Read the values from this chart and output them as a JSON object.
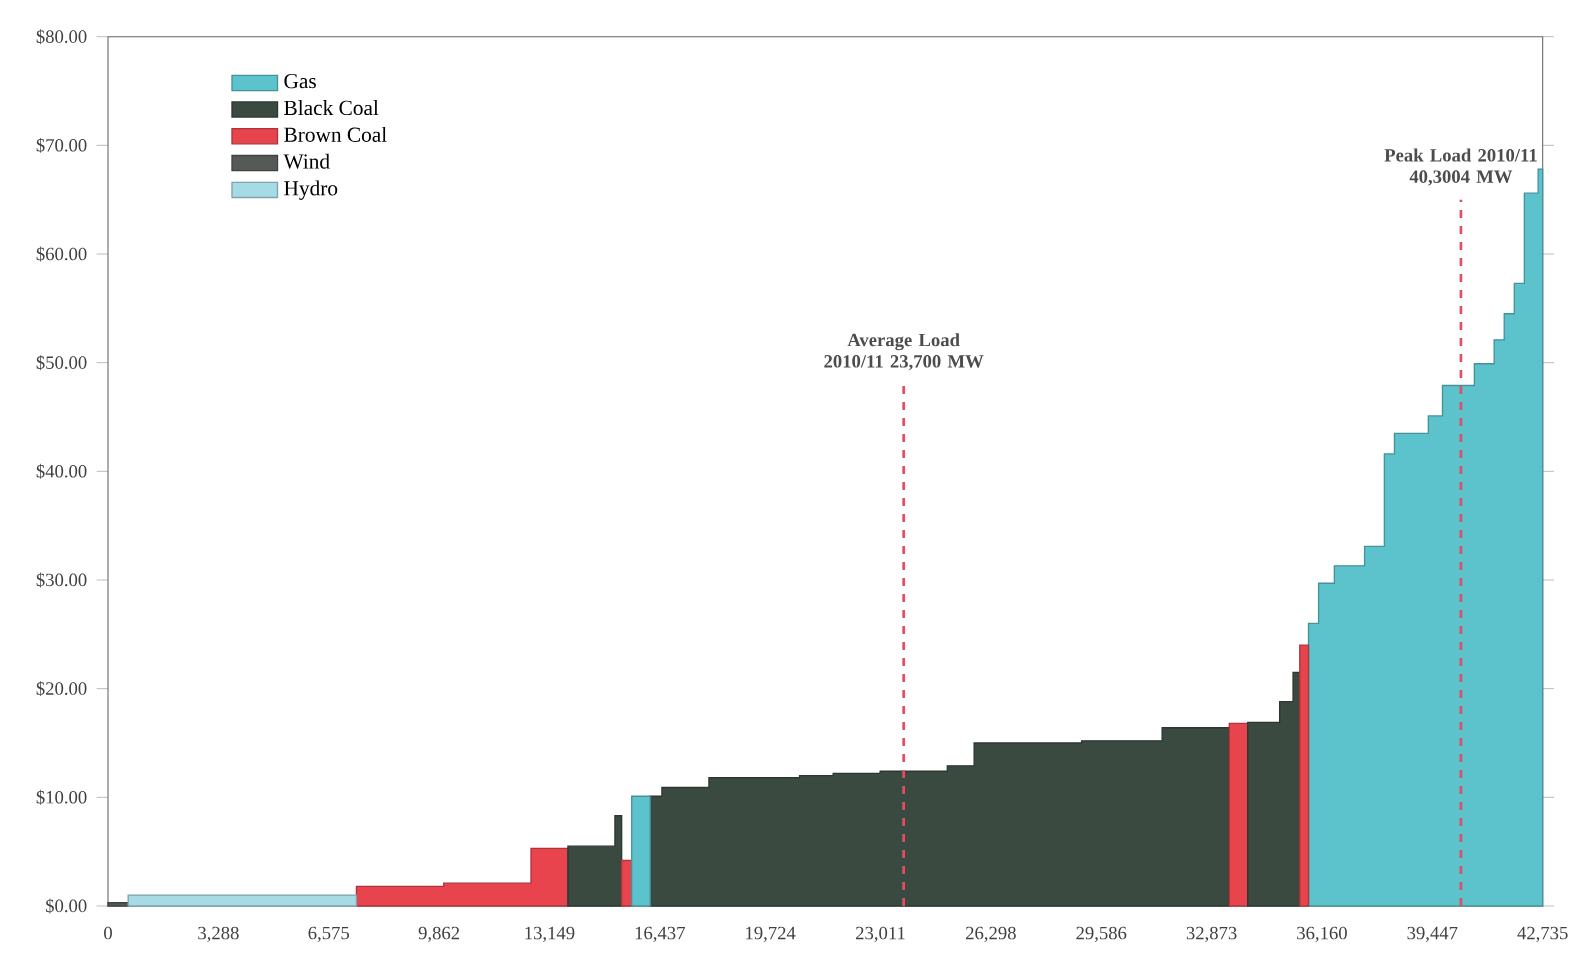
{
  "chart_data": {
    "type": "area",
    "xlim": [
      0,
      42735
    ],
    "ylim": [
      0,
      80
    ],
    "xticks": [
      0,
      {
        "value": 3288,
        "label": "3,288"
      },
      {
        "value": 6575,
        "label": "6,575"
      },
      {
        "value": 9862,
        "label": "9,862"
      },
      {
        "value": 13149,
        "label": "13,149"
      },
      {
        "value": 16437,
        "label": "16,437"
      },
      {
        "value": 19724,
        "label": "19,724"
      },
      {
        "value": 23011,
        "label": "23,011"
      },
      {
        "value": 26298,
        "label": "26,298"
      },
      {
        "value": 29586,
        "label": "29,586"
      },
      {
        "value": 32873,
        "label": "32,873"
      },
      {
        "value": 36160,
        "label": "36,160"
      },
      {
        "value": 39447,
        "label": "39,447"
      },
      {
        "value": 42735,
        "label": "42,735"
      }
    ],
    "yticks": [
      {
        "value": 0,
        "label": "$0.00"
      },
      {
        "value": 10,
        "label": "$10.00"
      },
      {
        "value": 20,
        "label": "$20.00"
      },
      {
        "value": 30,
        "label": "$30.00"
      },
      {
        "value": 40,
        "label": "$40.00"
      },
      {
        "value": 50,
        "label": "$50.00"
      },
      {
        "value": 60,
        "label": "$60.00"
      },
      {
        "value": 70,
        "label": "$70.00"
      },
      {
        "value": 80,
        "label": "$80.00"
      }
    ],
    "legend": "top left",
    "series": [
      {
        "name": "Gas",
        "color": "#5cc3cc",
        "x": [
          35760,
          36060,
          36060,
          36530,
          36530,
          37430,
          37430,
          38020,
          38020,
          38320,
          38320,
          39330,
          39330,
          39750,
          39750,
          40700,
          40700,
          41290,
          41290,
          41590,
          41590,
          41890,
          41890,
          42190,
          42190,
          42600,
          42600,
          42735
        ],
        "values": [
          26.0,
          26.0,
          29.7,
          29.7,
          31.3,
          31.3,
          33.1,
          33.1,
          41.6,
          41.6,
          43.5,
          43.5,
          45.1,
          45.1,
          47.9,
          47.9,
          49.9,
          49.9,
          52.1,
          52.1,
          54.5,
          54.5,
          57.3,
          57.3,
          65.6,
          65.6,
          67.8,
          67.8
        ]
      },
      {
        "name": "Black Coal",
        "color": "#3b4a40",
        "x": [
          16150,
          16500,
          16500,
          17900,
          17900,
          20600,
          20600,
          21600,
          21600,
          23000,
          23000,
          25000,
          25000,
          25800,
          25800,
          29000,
          29000,
          31400,
          31400,
          33400
        ],
        "values": [
          10.1,
          10.1,
          10.9,
          10.9,
          11.8,
          11.8,
          12.0,
          12.0,
          12.2,
          12.2,
          12.4,
          12.4,
          12.9,
          12.9,
          15.0,
          15.0,
          15.2,
          15.2,
          16.4,
          16.4
        ]
      },
      {
        "name": "Brown Coal",
        "color": "#e8444e",
        "x": [
          7400,
          10000,
          10000,
          12600,
          12600,
          13700
        ],
        "values": [
          1.8,
          1.8,
          2.1,
          2.1,
          5.3,
          5.3
        ]
      },
      {
        "name": "Wind",
        "color": "#555a57",
        "x": [
          0,
          600
        ],
        "values": [
          0.3,
          0.3
        ]
      },
      {
        "name": "Hydro",
        "color": "#a6dbe6",
        "x": [
          600,
          7400
        ],
        "values": [
          1.0,
          1.0
        ]
      },
      {
        "color": "#3b4a40",
        "x": [
          13700,
          15100,
          15100,
          15300
        ],
        "values": [
          5.5,
          5.5,
          8.3,
          8.3
        ]
      },
      {
        "color": "#e8444e",
        "x": [
          15300,
          15600
        ],
        "values": [
          4.2,
          4.2
        ]
      },
      {
        "color": "#5cc3cc",
        "x": [
          15600,
          16150
        ],
        "values": [
          10.1,
          10.1
        ]
      },
      {
        "color": "#e8444e",
        "x": [
          33400,
          33950
        ],
        "values": [
          16.8,
          16.8
        ]
      },
      {
        "color": "#3b4a40",
        "x": [
          33950,
          34900,
          34900,
          35300,
          35300,
          35500
        ],
        "values": [
          16.9,
          16.9,
          18.8,
          18.8,
          21.5,
          21.5
        ]
      },
      {
        "color": "#e8444e",
        "x": [
          35500,
          35760
        ],
        "values": [
          24.0,
          24.0
        ]
      }
    ],
    "ref_lines": [
      {
        "axis": "x",
        "value": 23700,
        "label": "Average Load 2010/11 23,700 MW",
        "color": "#e05060",
        "line_style": "dashed"
      },
      {
        "axis": "x",
        "value": 40300,
        "label": "Peak Load 2010/11 40,3004 MW",
        "color": "#e05060",
        "line_style": "dashed"
      }
    ]
  }
}
